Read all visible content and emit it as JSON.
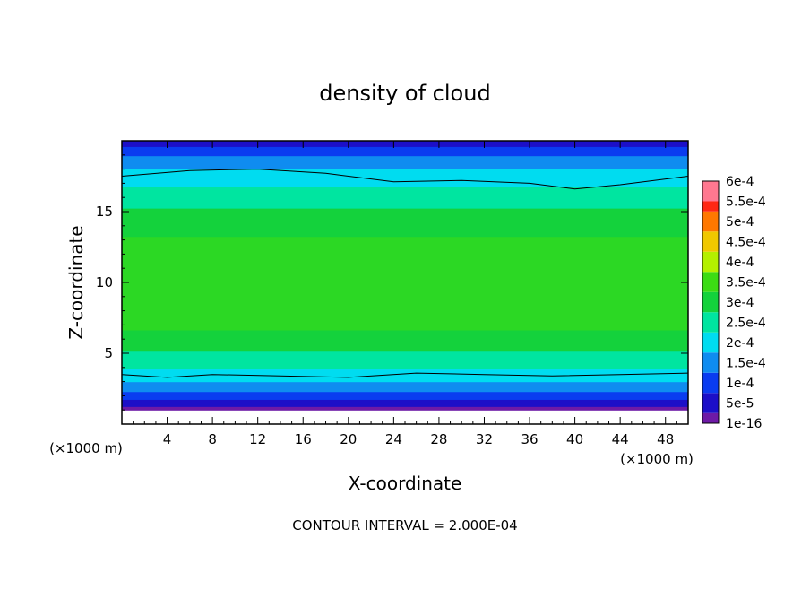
{
  "chart_data": {
    "type": "heatmap",
    "title": "density of cloud",
    "xlabel": "X-coordinate",
    "ylabel": "Z-coordinate",
    "x_unit": "(×1000 m)",
    "y_unit": "(×1000 m)",
    "xlim": [
      0,
      50
    ],
    "ylim": [
      0,
      20
    ],
    "x_ticks": [
      4,
      8,
      12,
      16,
      20,
      24,
      28,
      32,
      36,
      40,
      44,
      48
    ],
    "y_ticks": [
      5,
      10,
      15
    ],
    "footer": "CONTOUR INTERVAL = 2.000E-04",
    "colorbar": {
      "labels": [
        "1e-16",
        "5e-5",
        "1e-4",
        "1.5e-4",
        "2e-4",
        "2.5e-4",
        "3e-4",
        "3.5e-4",
        "4e-4",
        "4.5e-4",
        "5e-4",
        "5.5e-4",
        "6e-4"
      ],
      "values": [
        1e-16,
        5e-05,
        0.0001,
        0.00015,
        0.0002,
        0.00025,
        0.0003,
        0.00035,
        0.0004,
        0.00045,
        0.0005,
        0.00055,
        0.0006
      ],
      "colors": [
        "#6e1aa6",
        "#1c0fc8",
        "#0a3cf0",
        "#0f8cf0",
        "#00dcf0",
        "#00e5a0",
        "#14d23c",
        "#3cdc14",
        "#b4f000",
        "#f0c800",
        "#ff7800",
        "#ff2814",
        "#ff7890"
      ]
    },
    "profile": {
      "z": [
        1.0,
        1.5,
        2.0,
        2.6,
        3.4,
        4.5,
        5.8,
        7.5,
        12.0,
        14.5,
        16.0,
        17.5,
        18.6,
        19.3,
        19.9
      ],
      "density": [
        1e-16,
        5e-05,
        0.0001,
        0.00015,
        0.0002,
        0.00025,
        0.0003,
        0.00033,
        0.00033,
        0.0003,
        0.00025,
        0.0002,
        0.00015,
        0.0001,
        5e-05
      ]
    },
    "contour_lines": [
      {
        "level": 0.0002,
        "x": [
          0,
          6,
          12,
          18,
          24,
          30,
          36,
          40,
          44,
          50
        ],
        "z": [
          17.5,
          17.9,
          18.0,
          17.7,
          17.1,
          17.2,
          17.0,
          16.6,
          16.9,
          17.5
        ]
      },
      {
        "level": 0.0002,
        "x": [
          0,
          4,
          8,
          14,
          20,
          26,
          32,
          38,
          44,
          50
        ],
        "z": [
          3.5,
          3.3,
          3.5,
          3.4,
          3.3,
          3.6,
          3.5,
          3.4,
          3.5,
          3.6
        ]
      }
    ]
  }
}
